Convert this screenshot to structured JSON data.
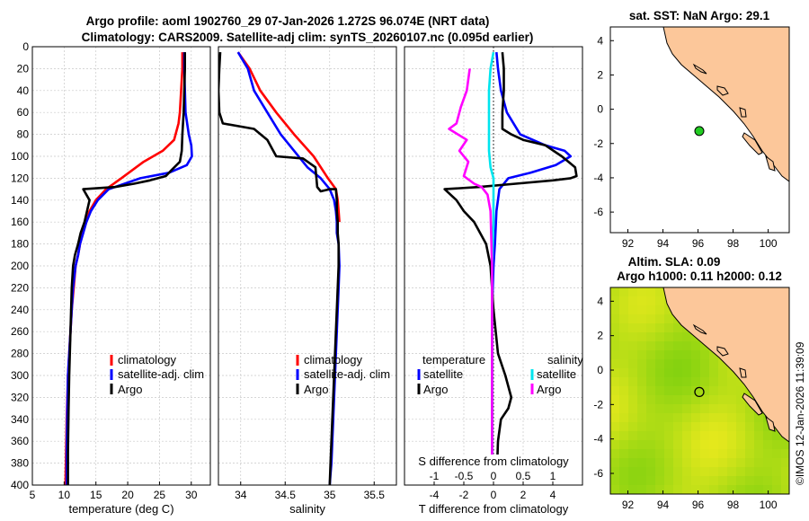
{
  "figure": {
    "title_line1": "Argo profile: aoml 1902760_29 07-Jan-2026 1.272S 96.074E (NRT data)",
    "title_line2": "Climatology: CARS2009. Satellite-adj clim: synTS_20260107.nc (0.095d earlier)",
    "timestamp": "©IMOS 12-Jan-2026 11:39:09"
  },
  "colors": {
    "climatology": "#ff0000",
    "satellite": "#0000ff",
    "argo": "#000000",
    "t_satellite": "#0000ff",
    "s_satellite": "#00e5ee",
    "s_argo": "#ff00ff",
    "land": "#fcc79a",
    "axes": "#000000"
  },
  "chart_data": [
    {
      "id": "temperature",
      "type": "line",
      "xlabel": "temperature (deg C)",
      "xlim": [
        5,
        33
      ],
      "ylim": [
        400,
        0
      ],
      "xticks": [
        5,
        10,
        15,
        20,
        25,
        30
      ],
      "yticks": [
        0,
        20,
        40,
        60,
        80,
        100,
        120,
        140,
        160,
        180,
        200,
        220,
        240,
        260,
        280,
        300,
        320,
        340,
        360,
        380,
        400
      ],
      "legend": [
        "climatology",
        "satellite-adj. clim",
        "Argo"
      ],
      "series": [
        {
          "name": "climatology",
          "color": "#ff0000",
          "x": [
            28.6,
            28.6,
            28.4,
            28.2,
            28.0,
            27.3,
            25.5,
            22.5,
            19.0,
            16.6,
            15.0,
            14.0,
            13.4,
            12.9,
            12.5,
            12.2,
            11.8,
            11.5,
            11.2,
            11.0,
            10.8,
            10.6,
            10.5,
            10.4,
            10.3,
            10.2
          ],
          "y": [
            5,
            20,
            40,
            60,
            70,
            85,
            95,
            105,
            120,
            130,
            140,
            150,
            160,
            170,
            180,
            190,
            200,
            220,
            240,
            260,
            280,
            300,
            320,
            340,
            370,
            400
          ]
        },
        {
          "name": "satellite-adj. clim",
          "color": "#0000ff",
          "x": [
            28.9,
            28.9,
            29.0,
            29.1,
            29.6,
            30.0,
            30.1,
            29.3,
            26.5,
            22.0,
            17.0,
            15.3,
            14.2,
            13.5,
            13.0,
            12.5,
            12.2,
            11.8,
            11.4,
            11.2,
            11.0,
            10.8,
            10.6,
            10.5,
            10.4,
            10.4
          ],
          "y": [
            5,
            20,
            40,
            60,
            80,
            90,
            100,
            108,
            115,
            120,
            130,
            140,
            150,
            160,
            170,
            180,
            190,
            200,
            220,
            240,
            260,
            280,
            300,
            330,
            370,
            400
          ]
        },
        {
          "name": "Argo",
          "color": "#000000",
          "x": [
            29.0,
            29.0,
            28.9,
            28.8,
            28.6,
            28.5,
            28.2,
            27.0,
            26.0,
            23.5,
            21.0,
            18.0,
            13.0,
            14.0,
            13.6,
            13.2,
            12.6,
            12.2,
            11.7,
            11.4,
            11.2,
            11.1,
            11.0,
            10.9,
            10.8,
            10.7,
            10.6,
            10.6
          ],
          "y": [
            5,
            20,
            40,
            60,
            80,
            95,
            105,
            112,
            118,
            122,
            125,
            128,
            130,
            140,
            150,
            160,
            170,
            180,
            190,
            200,
            220,
            240,
            260,
            280,
            300,
            330,
            370,
            400
          ]
        }
      ]
    },
    {
      "id": "salinity",
      "type": "line",
      "xlabel": "salinity",
      "xlim": [
        33.75,
        35.75
      ],
      "ylim": [
        400,
        0
      ],
      "xticks": [
        34,
        34.5,
        35,
        35.5
      ],
      "legend": [
        "climatology",
        "satellite-adj. clim",
        "Argo"
      ],
      "series": [
        {
          "name": "climatology",
          "color": "#ff0000",
          "x": [
            33.97,
            34.1,
            34.22,
            34.4,
            34.6,
            34.82,
            34.98,
            35.07,
            35.09,
            35.1,
            35.11
          ],
          "y": [
            5,
            20,
            40,
            60,
            80,
            100,
            120,
            130,
            140,
            150,
            160
          ]
        },
        {
          "name": "satellite-adj. clim",
          "color": "#0000ff",
          "x": [
            33.97,
            34.08,
            34.15,
            34.3,
            34.45,
            34.6,
            34.75,
            34.9,
            35.0,
            35.05,
            35.07,
            35.08,
            35.08,
            35.1,
            35.11,
            35.1,
            35.09,
            35.08,
            35.07,
            35.06,
            35.05,
            35.04,
            35.03,
            35.02,
            35.01,
            35.0
          ],
          "y": [
            5,
            20,
            40,
            60,
            80,
            95,
            110,
            120,
            130,
            140,
            150,
            160,
            170,
            180,
            200,
            220,
            240,
            260,
            280,
            300,
            320,
            340,
            360,
            380,
            390,
            400
          ]
        },
        {
          "name": "Argo",
          "color": "#000000",
          "x": [
            33.77,
            33.76,
            33.75,
            33.76,
            33.8,
            34.15,
            34.3,
            34.4,
            34.7,
            34.84,
            34.86,
            34.9,
            35.0,
            35.07,
            35.08,
            35.08,
            35.09,
            35.09,
            35.1,
            35.1,
            35.09,
            35.08,
            35.07,
            35.06,
            35.05,
            35.04,
            35.03,
            35.02,
            35.01,
            35.0
          ],
          "y": [
            5,
            20,
            40,
            60,
            70,
            75,
            85,
            100,
            102,
            110,
            128,
            132,
            130,
            130,
            140,
            150,
            160,
            170,
            180,
            200,
            220,
            240,
            260,
            280,
            300,
            320,
            340,
            360,
            380,
            400
          ]
        }
      ]
    },
    {
      "id": "difference",
      "type": "line",
      "xlabel": "T difference from climatology",
      "top_label": "S difference from climatology",
      "xlim": [
        -6,
        6
      ],
      "ylim": [
        400,
        0
      ],
      "xticks": [
        -4,
        -2,
        0,
        2,
        4
      ],
      "s_xticks": [
        -1,
        -0.5,
        0,
        0.5,
        1
      ],
      "s_scale": 4,
      "legend_t_title": "temperature",
      "legend_s_title": "salinity",
      "legend_t": [
        "satellite",
        "Argo"
      ],
      "legend_s": [
        "satellite",
        "Argo"
      ],
      "series": [
        {
          "name": "T satellite",
          "color": "#0000ff",
          "x": [
            0.2,
            0.3,
            0.5,
            0.9,
            1.8,
            3.5,
            4.8,
            5.2,
            4.2,
            2.5,
            1.0,
            0.4,
            0.2,
            0.1,
            0.0,
            -0.1,
            -0.1,
            -0.1,
            -0.1,
            -0.1
          ],
          "y": [
            5,
            20,
            40,
            60,
            80,
            90,
            95,
            100,
            108,
            115,
            120,
            130,
            150,
            180,
            200,
            240,
            280,
            320,
            360,
            400
          ]
        },
        {
          "name": "T Argo",
          "color": "#000000",
          "x": [
            0.6,
            0.7,
            0.7,
            0.6,
            0.6,
            1.2,
            2.0,
            3.5,
            4.6,
            5.5,
            5.6,
            5.2,
            4.0,
            1.5,
            -1.0,
            -3.3,
            -2.5,
            -2.0,
            -1.3,
            -0.5,
            -0.2,
            0.0,
            0.3,
            0.8,
            1.2,
            1.0,
            0.5,
            0.3,
            0.2
          ],
          "y": [
            5,
            20,
            40,
            60,
            75,
            80,
            85,
            90,
            100,
            110,
            118,
            120,
            122,
            125,
            128,
            130,
            140,
            150,
            160,
            180,
            200,
            240,
            280,
            300,
            320,
            330,
            340,
            360,
            400
          ]
        },
        {
          "name": "S satellite",
          "color": "#00e5ee",
          "x": [
            0.0,
            -0.2,
            -0.3,
            -0.3,
            -0.3,
            -0.3,
            -0.2,
            0.0,
            0.0,
            0.0,
            -0.1,
            -0.1,
            -0.1,
            -0.1,
            -0.1,
            -0.1
          ],
          "y": [
            5,
            20,
            40,
            60,
            80,
            95,
            110,
            120,
            130,
            160,
            200,
            240,
            280,
            320,
            360,
            400
          ]
        },
        {
          "name": "S Argo",
          "color": "#ff00ff",
          "x": [
            -1.6,
            -1.8,
            -2.2,
            -2.5,
            -3.0,
            -1.8,
            -2.3,
            -1.7,
            -2.0,
            -1.3,
            -0.8,
            -0.4,
            -0.2,
            -0.1,
            -0.1,
            -0.1,
            -0.1
          ],
          "y": [
            20,
            40,
            55,
            70,
            75,
            85,
            95,
            105,
            118,
            125,
            128,
            135,
            150,
            200,
            260,
            320,
            400
          ]
        }
      ]
    },
    {
      "id": "sst_map",
      "type": "scatter",
      "title": "sat. SST: NaN Argo: 29.1",
      "xlim": [
        91,
        101.2
      ],
      "ylim": [
        -7.2,
        4.8
      ],
      "xticks": [
        92,
        94,
        96,
        98,
        100
      ],
      "yticks": [
        4,
        2,
        0,
        -2,
        -4,
        -6
      ],
      "point": {
        "lon": 96.074,
        "lat": -1.272
      }
    },
    {
      "id": "sla_map",
      "type": "heatmap",
      "title_line1": "Altim. SLA: 0.09",
      "title_line2": "Argo h1000: 0.11 h2000: 0.12",
      "xlim": [
        91,
        101.2
      ],
      "ylim": [
        -7.2,
        4.8
      ],
      "xticks": [
        92,
        94,
        96,
        98,
        100
      ],
      "yticks": [
        4,
        2,
        0,
        -2,
        -4,
        -6
      ],
      "point": {
        "lon": 96.074,
        "lat": -1.272
      }
    }
  ]
}
